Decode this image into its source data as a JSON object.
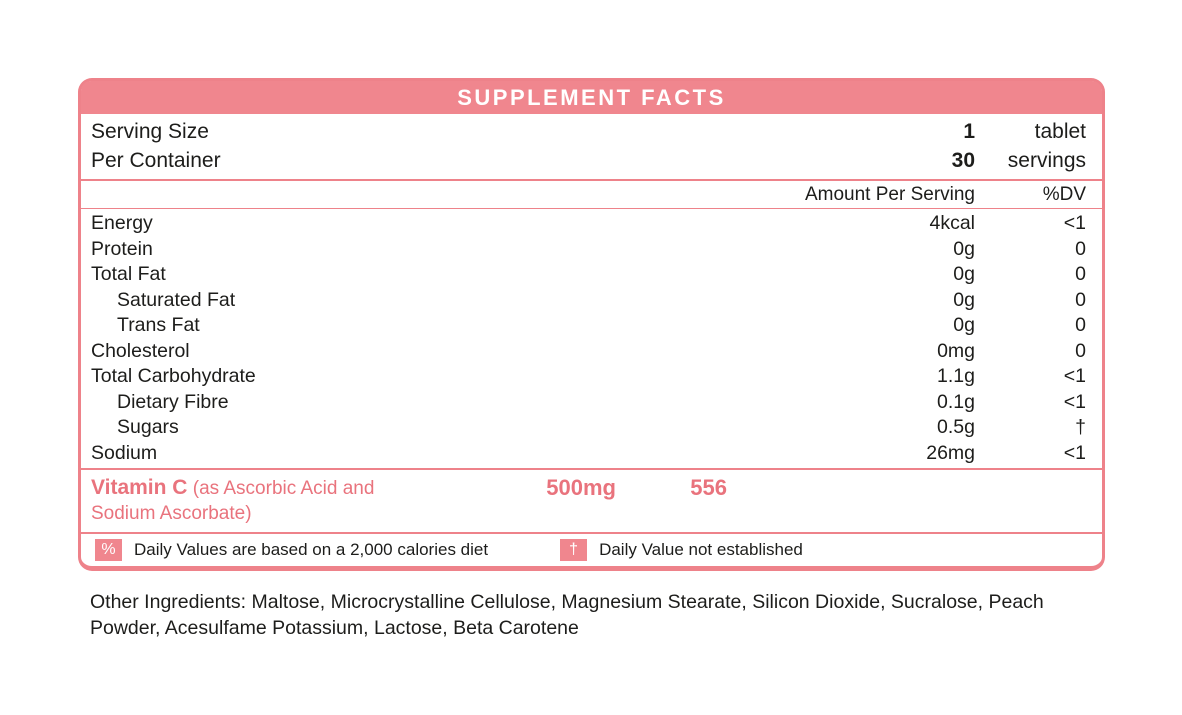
{
  "panel": {
    "title": "SUPPLEMENT FACTS",
    "serving": {
      "rows": [
        {
          "label": "Serving Size",
          "value": "1",
          "unit": "tablet"
        },
        {
          "label": "Per Container",
          "value": "30",
          "unit": "servings"
        }
      ]
    },
    "columns": {
      "amount": "Amount Per Serving",
      "dv": "%DV"
    },
    "nutrients": [
      {
        "label": "Energy",
        "amount": "4kcal",
        "dv": "<1"
      },
      {
        "label": "Protein",
        "amount": "0g",
        "dv": "0"
      },
      {
        "label": "Total Fat",
        "amount": "0g",
        "dv": "0"
      },
      {
        "label": "Saturated Fat",
        "amount": "0g",
        "dv": "0"
      },
      {
        "label": "Trans Fat",
        "amount": "0g",
        "dv": "0"
      },
      {
        "label": "Cholesterol",
        "amount": "0mg",
        "dv": "0"
      },
      {
        "label": "Total Carbohydrate",
        "amount": "1.1g",
        "dv": "<1"
      },
      {
        "label": "Dietary Fibre",
        "amount": "0.1g",
        "dv": "<1"
      },
      {
        "label": "Sugars",
        "amount": "0.5g",
        "dv": "†"
      },
      {
        "label": "Sodium",
        "amount": "26mg",
        "dv": "<1"
      }
    ],
    "highlight": {
      "name": "Vitamin C",
      "detail": " (as Ascorbic Acid and Sodium Ascorbate)",
      "amount": "500mg",
      "dv": "556"
    },
    "footnotes": [
      {
        "symbol": "%",
        "text": "Daily Values are based on a 2,000 calories diet"
      },
      {
        "symbol": "†",
        "text": "Daily Value not established"
      }
    ]
  },
  "other_ingredients": "Other Ingredients: Maltose, Microcrystalline Cellulose, Magnesium Stearate, Silicon Dioxide, Sucralose, Peach Powder, Acesulfame Potassium, Lactose, Beta Carotene",
  "colors": {
    "accent_fill": "#F0868E",
    "accent_border": "#EE828A",
    "accent_text": "#E9737D",
    "ink": "#1D1D1B"
  }
}
